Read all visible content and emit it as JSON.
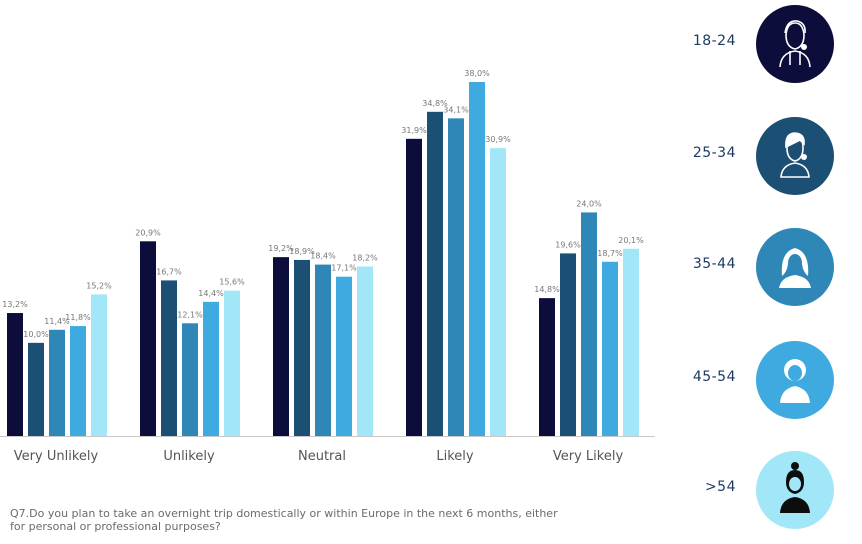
{
  "chart_data": {
    "type": "bar",
    "categories": [
      "Very Unlikely",
      "Unlikely",
      "Neutral",
      "Likely",
      "Very Likely"
    ],
    "series": [
      {
        "name": "18-24",
        "color": "#0d0d3b",
        "values": [
          13.2,
          20.9,
          19.2,
          31.9,
          14.8
        ],
        "labels": [
          "13,2%",
          "20,9%",
          "19,2%",
          "31,9%",
          "14,8%"
        ]
      },
      {
        "name": "25-34",
        "color": "#1b4f74",
        "values": [
          10.0,
          16.7,
          18.9,
          34.8,
          19.6
        ],
        "labels": [
          "10,0%",
          "16,7%",
          "18,9%",
          "34,8%",
          "19,6%"
        ]
      },
      {
        "name": "35-44",
        "color": "#2e87b6",
        "values": [
          11.4,
          12.1,
          18.4,
          34.1,
          24.0
        ],
        "labels": [
          "11,4%",
          "12,1%",
          "18,4%",
          "34,1%",
          "24,0%"
        ]
      },
      {
        "name": "45-54",
        "color": "#3eaadf",
        "values": [
          11.8,
          14.4,
          17.1,
          38.0,
          18.7
        ],
        "labels": [
          "11,8%",
          "14,4%",
          "17,1%",
          "38,0%",
          "18,7%"
        ]
      },
      {
        "name": ">54",
        "color": "#a2e7f7",
        "values": [
          15.2,
          15.6,
          18.2,
          30.9,
          20.1
        ],
        "labels": [
          "15,2%",
          "15,6%",
          "18,2%",
          "30,9%",
          "20,1%"
        ]
      }
    ],
    "ylim": [
      0,
      38
    ],
    "grid": false,
    "legend_placement": "right"
  },
  "legend": [
    {
      "label": "18-24",
      "color": "#0d0d3b",
      "icon": "young-man-icon"
    },
    {
      "label": "25-34",
      "color": "#1b4f74",
      "icon": "man-icon"
    },
    {
      "label": "35-44",
      "color": "#2e87b6",
      "icon": "woman-icon"
    },
    {
      "label": "45-54",
      "color": "#3eaadf",
      "icon": "person-icon"
    },
    {
      "label": ">54",
      "color": "#a2e7f7",
      "icon": "older-woman-icon"
    }
  ],
  "note": "Q7.Do you plan to take an overnight trip domestically or within Europe in the next 6 months, either for personal or professional purposes?",
  "colors": {
    "axis": "#c8c8c8",
    "category_text": "#555555",
    "value_label": "#777777",
    "legend_text": "#1e3a63"
  }
}
